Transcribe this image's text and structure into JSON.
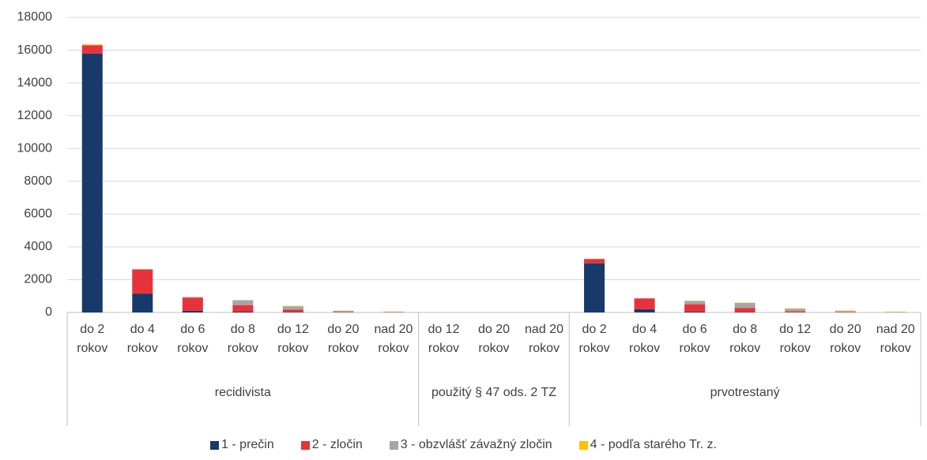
{
  "chart_data": {
    "type": "bar",
    "stacked": true,
    "groups": [
      {
        "label": "recidivista",
        "categories": [
          "do 2 rokov",
          "do 4 rokov",
          "do 6 rokov",
          "do 8 rokov",
          "do 12 rokov",
          "do 20 rokov",
          "nad 20 rokov"
        ]
      },
      {
        "label": "použitý § 47 ods. 2 TZ",
        "categories": [
          "do 12 rokov",
          "do 20 rokov",
          "nad 20 rokov"
        ]
      },
      {
        "label": "prvotrestaný",
        "categories": [
          "do 2 rokov",
          "do 4 rokov",
          "do 6 rokov",
          "do 8 rokov",
          "do 12 rokov",
          "do 20 rokov",
          "nad 20 rokov"
        ]
      }
    ],
    "series": [
      {
        "name": "1 - prečin",
        "color": "#173a6b",
        "values": [
          15800,
          1150,
          100,
          50,
          30,
          10,
          5,
          0,
          0,
          0,
          3000,
          200,
          50,
          30,
          10,
          5,
          2
        ]
      },
      {
        "name": "2 - zločin",
        "color": "#e8323a",
        "values": [
          500,
          1450,
          800,
          400,
          150,
          30,
          10,
          0,
          0,
          0,
          250,
          650,
          450,
          250,
          60,
          20,
          5
        ]
      },
      {
        "name": "3 - obzvlášť závažný zločin",
        "color": "#a6a6a6",
        "values": [
          0,
          50,
          50,
          300,
          200,
          60,
          30,
          0,
          0,
          0,
          20,
          30,
          200,
          300,
          150,
          60,
          20
        ]
      },
      {
        "name": "4 - podľa starého Tr. z.",
        "color": "#ffc000",
        "values": [
          50,
          10,
          0,
          0,
          20,
          10,
          10,
          0,
          0,
          0,
          10,
          0,
          10,
          20,
          30,
          30,
          20
        ]
      }
    ],
    "ylim": [
      0,
      18000
    ],
    "yticks": [
      0,
      2000,
      4000,
      6000,
      8000,
      10000,
      12000,
      14000,
      16000,
      18000
    ],
    "grid": true
  }
}
